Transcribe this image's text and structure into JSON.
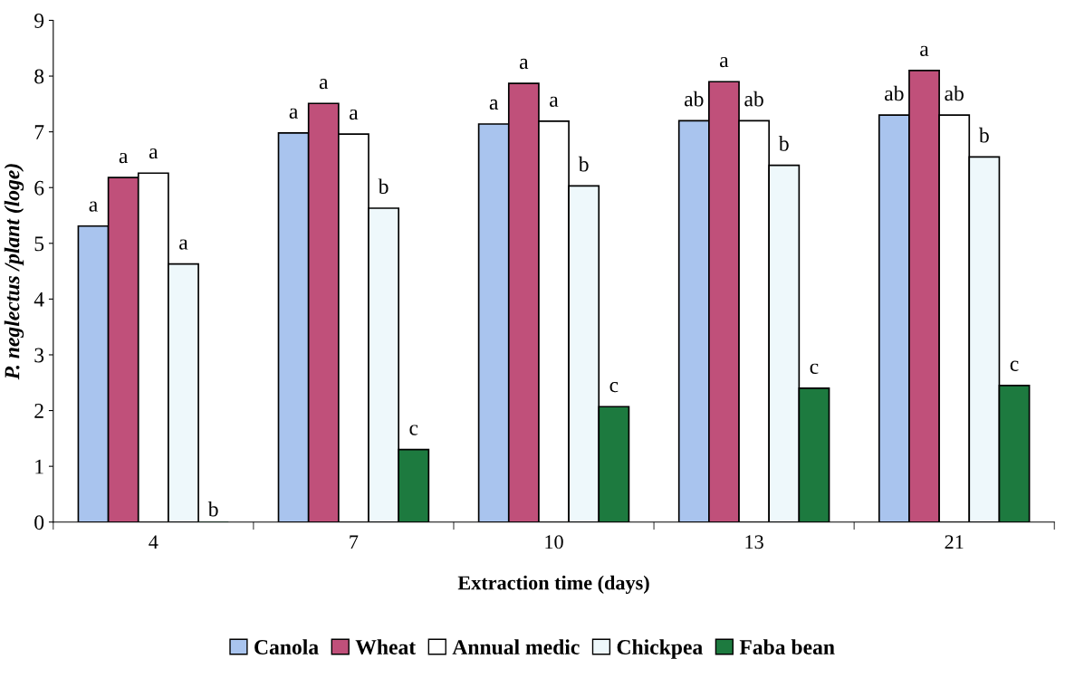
{
  "chart_data": {
    "type": "bar",
    "xlabel": "Extraction time (days)",
    "ylabel": "P. neglectus /plant (loge)",
    "categories": [
      "4",
      "7",
      "10",
      "13",
      "21"
    ],
    "series": [
      {
        "name": "Canola",
        "color": "#a9c4ee",
        "values": [
          5.31,
          6.98,
          7.14,
          7.2,
          7.3
        ],
        "value_labels": [
          "a",
          "a",
          "a",
          "ab",
          "ab"
        ]
      },
      {
        "name": "Wheat",
        "color": "#c0507a",
        "values": [
          6.18,
          7.51,
          7.87,
          7.9,
          8.1
        ],
        "value_labels": [
          "a",
          "a",
          "a",
          "a",
          "a"
        ]
      },
      {
        "name": "Annual medic",
        "color": "#ffffff",
        "values": [
          6.26,
          6.96,
          7.19,
          7.2,
          7.3
        ],
        "value_labels": [
          "a",
          "a",
          "a",
          "ab",
          "ab"
        ]
      },
      {
        "name": "Chickpea",
        "color": "#eef8fb",
        "values": [
          4.63,
          5.63,
          6.03,
          6.4,
          6.55
        ],
        "value_labels": [
          "a",
          "b",
          "b",
          "b",
          "b"
        ]
      },
      {
        "name": "Faba bean",
        "color": "#1d7a3f",
        "values": [
          0,
          1.3,
          2.07,
          2.4,
          2.45
        ],
        "value_labels": [
          "b",
          "c",
          "c",
          "c",
          "c"
        ]
      }
    ],
    "ylim": [
      0,
      9
    ],
    "yticks": [
      0,
      1,
      2,
      3,
      4,
      5,
      6,
      7,
      8,
      9
    ],
    "grid": false,
    "legend": "bottom"
  }
}
